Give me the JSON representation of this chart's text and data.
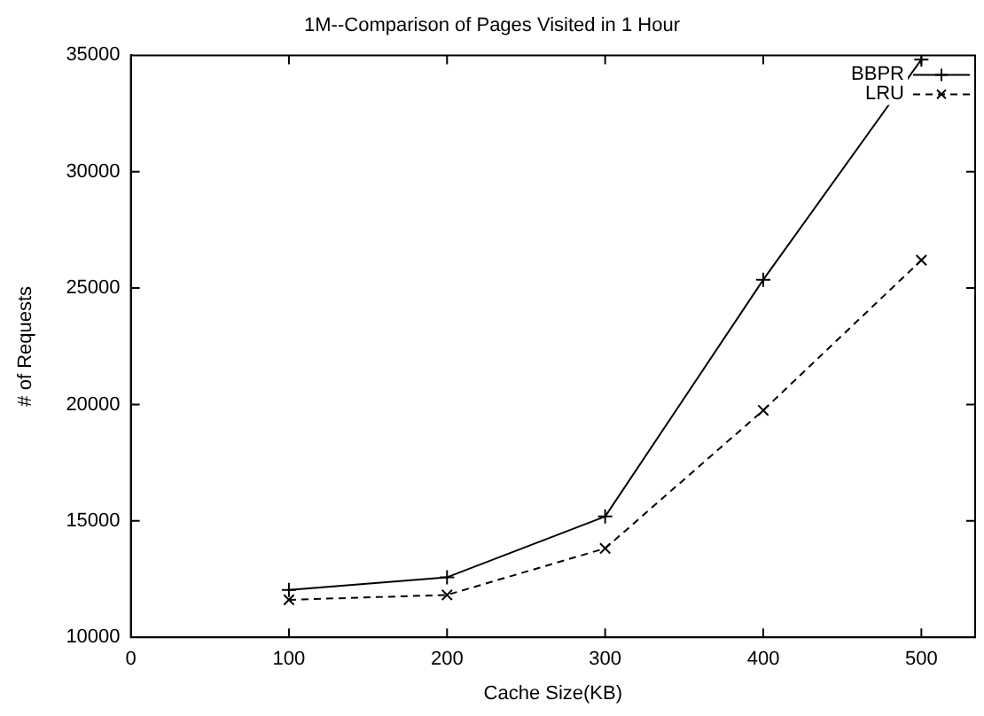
{
  "chart_data": {
    "type": "line",
    "title": "1M--Comparison of Pages Visited in 1 Hour",
    "xlabel": "Cache Size(KB)",
    "ylabel": "# of Requests",
    "x": [
      100,
      200,
      300,
      400,
      500
    ],
    "series": [
      {
        "name": "BBPR",
        "color": "#000000",
        "marker": "cross",
        "line_style": "solid",
        "values": [
          12030,
          12580,
          15190,
          25360,
          34820
        ]
      },
      {
        "name": "LRU",
        "color": "#000000",
        "marker": "x",
        "line_style": "dashed",
        "values": [
          11610,
          11820,
          13820,
          19750,
          26200
        ]
      }
    ],
    "xlim": [
      0,
      534
    ],
    "xticks": [
      0,
      100,
      200,
      300,
      400,
      500
    ],
    "ylim": [
      10000,
      35000
    ],
    "yticks": [
      10000,
      15000,
      20000,
      25000,
      30000,
      35000
    ],
    "grid": false,
    "legend": "top right"
  }
}
